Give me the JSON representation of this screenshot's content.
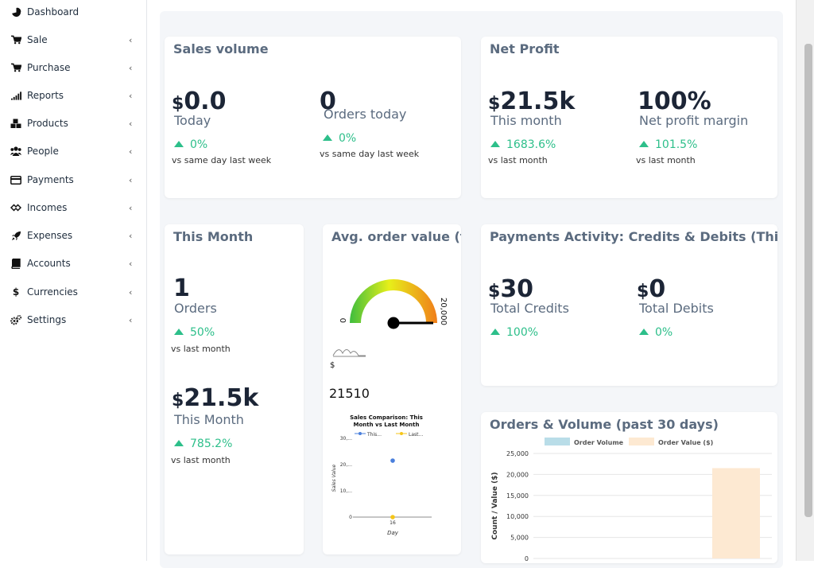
{
  "sidebar": {
    "items": [
      {
        "label": "Dashboard",
        "icon": "pie-chart-icon",
        "has_chevron": false
      },
      {
        "label": "Sale",
        "icon": "cart-icon",
        "has_chevron": true
      },
      {
        "label": "Purchase",
        "icon": "cart-plus-icon",
        "has_chevron": true
      },
      {
        "label": "Reports",
        "icon": "signal-icon",
        "has_chevron": true
      },
      {
        "label": "Products",
        "icon": "cubes-icon",
        "has_chevron": true
      },
      {
        "label": "People",
        "icon": "users-icon",
        "has_chevron": true
      },
      {
        "label": "Payments",
        "icon": "credit-card-icon",
        "has_chevron": true
      },
      {
        "label": "Incomes",
        "icon": "handshake-icon",
        "has_chevron": true
      },
      {
        "label": "Expenses",
        "icon": "rocket-icon",
        "has_chevron": true
      },
      {
        "label": "Accounts",
        "icon": "book-icon",
        "has_chevron": true
      },
      {
        "label": "Currencies",
        "icon": "dollar-icon",
        "has_chevron": true
      },
      {
        "label": "Settings",
        "icon": "cogs-icon",
        "has_chevron": true
      }
    ],
    "chevron": "‹"
  },
  "sales_volume": {
    "title": "Sales volume",
    "today": {
      "currency": "$",
      "value": "0.0",
      "label": "Today",
      "delta": "0%",
      "compare": "vs same day last week"
    },
    "orders": {
      "value": "0",
      "label": "Orders today",
      "delta": "0%",
      "compare": "vs same day last week"
    }
  },
  "net_profit": {
    "title": "Net Profit",
    "month": {
      "currency": "$",
      "value": "21.5k",
      "label": "This month",
      "delta": "1683.6%",
      "compare": "vs last month"
    },
    "margin": {
      "value": "100%",
      "label": "Net profit margin",
      "delta": "101.5%",
      "compare": "vs last month"
    }
  },
  "this_month": {
    "title": "This Month",
    "orders": {
      "value": "1",
      "label": "Orders",
      "delta": "50%",
      "compare": "vs last month"
    },
    "revenue": {
      "currency": "$",
      "value": "21.5k",
      "label": "This Month",
      "delta": "785.2%",
      "compare": "vs last month"
    }
  },
  "avg_order": {
    "title": "Avg. order value (this m",
    "gauge_min": "0",
    "gauge_max": "20,000",
    "gauge_value": 21510,
    "currency_label": "$",
    "value": "21510"
  },
  "payments": {
    "title": "Payments Activity: Credits & Debits (This Month",
    "credits": {
      "currency": "$",
      "value": "30",
      "label": "Total Credits",
      "delta": "100%"
    },
    "debits": {
      "currency": "$",
      "value": "0",
      "label": "Total Debits",
      "delta": "0%"
    }
  },
  "orders_volume": {
    "title": "Orders & Volume (past 30 days)"
  },
  "colors": {
    "accent_green": "#2dbf8a",
    "title_gray": "#5b6b7f",
    "order_volume": "#b9dde8",
    "order_value": "#fde9d2",
    "this_month_point": "#4a7fdc",
    "last_month_point": "#f5c518"
  },
  "chart_data": [
    {
      "type": "scatter",
      "title": "Sales Comparison: This Month vs Last Month",
      "xlabel": "Day",
      "ylabel": "Sales Value",
      "x_ticks": [
        "16"
      ],
      "y_ticks": [
        "0",
        "10,...",
        "20,...",
        "30,..."
      ],
      "ylim": [
        0,
        30000
      ],
      "series": [
        {
          "name": "This...",
          "x": [
            16
          ],
          "y": [
            21510
          ],
          "color": "#4a7fdc"
        },
        {
          "name": "Last...",
          "x": [
            16
          ],
          "y": [
            0
          ],
          "color": "#f5c518"
        }
      ],
      "legend": "top"
    },
    {
      "type": "bar",
      "xlabel": "",
      "ylabel": "Count / Value ($)",
      "y_ticks": [
        "0",
        "5,000",
        "10,000",
        "15,000",
        "20,000",
        "25,000"
      ],
      "ylim": [
        0,
        25000
      ],
      "categories": [
        "",
        ""
      ],
      "series": [
        {
          "name": "Order Volume",
          "values": [
            0,
            1
          ],
          "color": "#b9dde8"
        },
        {
          "name": "Order Value ($)",
          "values": [
            0,
            21510
          ],
          "color": "#fde9d2"
        }
      ],
      "legend": "top"
    }
  ]
}
